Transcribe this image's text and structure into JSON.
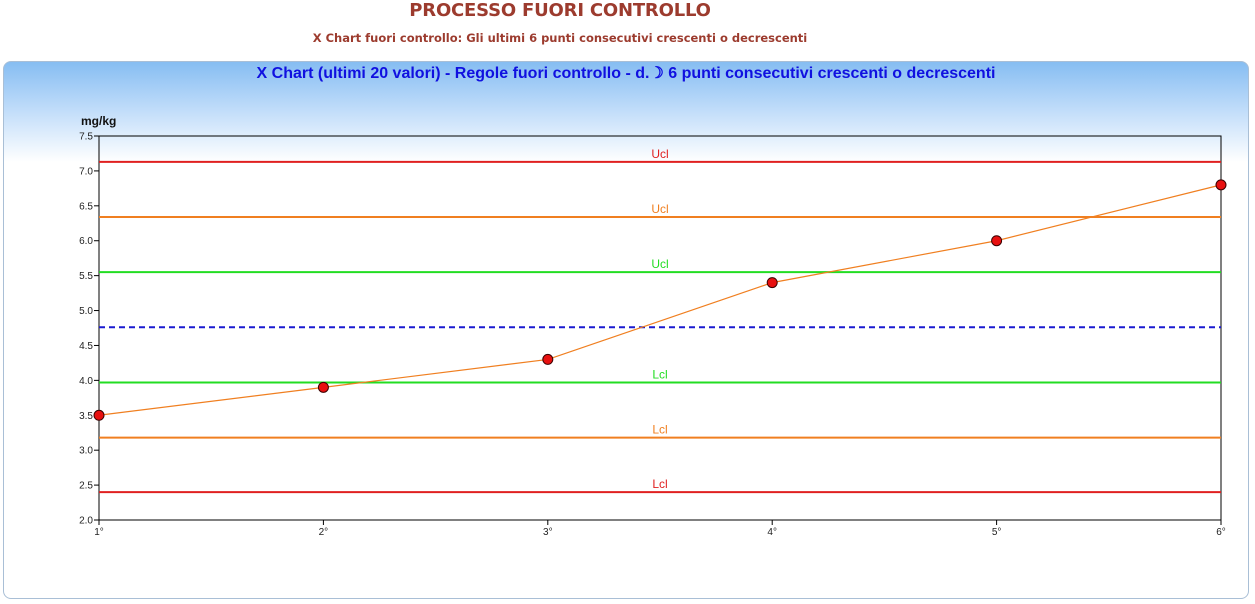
{
  "page": {
    "title": "PROCESSO FUORI CONTROLLO",
    "subtitle": "X Chart fuori controllo: Gli ultimi 6 punti consecutivi crescenti o decrescenti"
  },
  "chart_data": {
    "type": "line",
    "title": "X Chart (ultimi 20 valori) - Regole fuori controllo - d.☽ 6 punti consecutivi crescenti o decrescenti",
    "ylabel": "mg/kg",
    "xlabel": "",
    "categories": [
      "1°",
      "2°",
      "3°",
      "4°",
      "5°",
      "6°"
    ],
    "values": [
      3.5,
      3.9,
      4.3,
      5.4,
      6.0,
      6.8
    ],
    "ylim": [
      2.0,
      7.5
    ],
    "yticks": [
      "2.0",
      "2.5",
      "3.0",
      "3.5",
      "4.0",
      "4.5",
      "5.0",
      "5.5",
      "6.0",
      "6.5",
      "7.0",
      "7.5"
    ],
    "grid": false,
    "center_line": 4.76,
    "limits": [
      {
        "label": "Ucl",
        "value": 7.13,
        "color": "#e02020"
      },
      {
        "label": "Ucl",
        "value": 6.34,
        "color": "#f07f20"
      },
      {
        "label": "Ucl",
        "value": 5.55,
        "color": "#22dd22"
      },
      {
        "label": "Lcl",
        "value": 3.97,
        "color": "#22dd22"
      },
      {
        "label": "Lcl",
        "value": 3.18,
        "color": "#f07f20"
      },
      {
        "label": "Lcl",
        "value": 2.4,
        "color": "#e02020"
      }
    ],
    "colors": {
      "series_line": "#f07f20",
      "marker_fill": "#e81010",
      "center_line": "#1a1ad0"
    }
  }
}
